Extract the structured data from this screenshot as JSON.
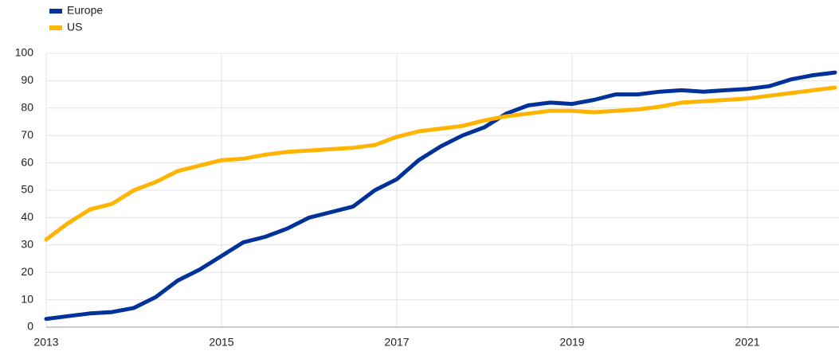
{
  "chart_data": {
    "type": "line",
    "x": [
      2013,
      2013.25,
      2013.5,
      2013.75,
      2014,
      2014.25,
      2014.5,
      2014.75,
      2015,
      2015.25,
      2015.5,
      2015.75,
      2016,
      2016.25,
      2016.5,
      2016.75,
      2017,
      2017.25,
      2017.5,
      2017.75,
      2018,
      2018.25,
      2018.5,
      2018.75,
      2019,
      2019.25,
      2019.5,
      2019.75,
      2020,
      2020.25,
      2020.5,
      2020.75,
      2021,
      2021.25,
      2021.5,
      2021.75,
      2022
    ],
    "series": [
      {
        "name": "Europe",
        "color": "#003299",
        "values": [
          3,
          4,
          5,
          5.5,
          7,
          11,
          17,
          21,
          26,
          31,
          33,
          36,
          40,
          42,
          44,
          50,
          54,
          61,
          66,
          70,
          73,
          78,
          81,
          82,
          81.5,
          83,
          85,
          85,
          86,
          86.5,
          86,
          86.5,
          87,
          88,
          90.5,
          92,
          93
        ]
      },
      {
        "name": "US",
        "color": "#ffb400",
        "values": [
          32,
          38,
          43,
          45,
          50,
          53,
          57,
          59,
          61,
          61.5,
          63,
          64,
          64.5,
          65,
          65.5,
          66.5,
          69.5,
          71.5,
          72.5,
          73.5,
          75.5,
          77,
          78,
          79,
          79,
          78.5,
          79,
          79.5,
          80.5,
          82,
          82.5,
          83,
          83.5,
          84.5,
          85.5,
          86.5,
          87.5
        ]
      }
    ],
    "xlim": [
      2013,
      2022
    ],
    "xticks": [
      2013,
      2015,
      2017,
      2019,
      2021
    ],
    "ylim": [
      0,
      100
    ],
    "yticks": [
      0,
      10,
      20,
      30,
      40,
      50,
      60,
      70,
      80,
      90,
      100
    ],
    "grid": true,
    "legend": "top-left"
  }
}
